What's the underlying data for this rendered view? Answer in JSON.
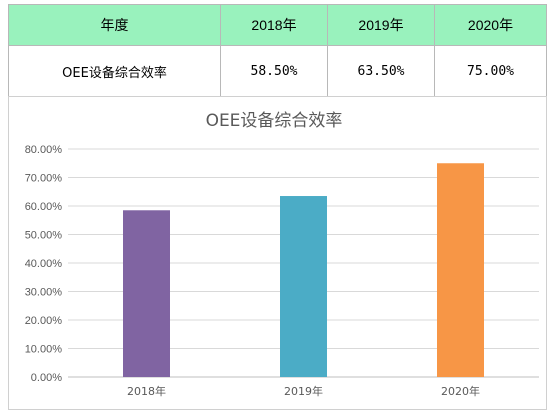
{
  "table": {
    "header": [
      "年度",
      "2018年",
      "2019年",
      "2020年"
    ],
    "row_label": "OEE设备综合效率",
    "values": [
      "58.50%",
      "63.50%",
      "75.00%"
    ]
  },
  "chart_data": {
    "type": "bar",
    "title": "OEE设备综合效率",
    "categories": [
      "2018年",
      "2019年",
      "2020年"
    ],
    "values": [
      58.5,
      63.5,
      75.0
    ],
    "colors": [
      "#8064a2",
      "#4bacc6",
      "#f79646"
    ],
    "ylim": [
      0,
      80
    ],
    "yticks": [
      "0.00%",
      "10.00%",
      "20.00%",
      "30.00%",
      "40.00%",
      "50.00%",
      "60.00%",
      "70.00%",
      "80.00%"
    ],
    "xlabel": "",
    "ylabel": "",
    "grid": true,
    "legend": "none"
  }
}
